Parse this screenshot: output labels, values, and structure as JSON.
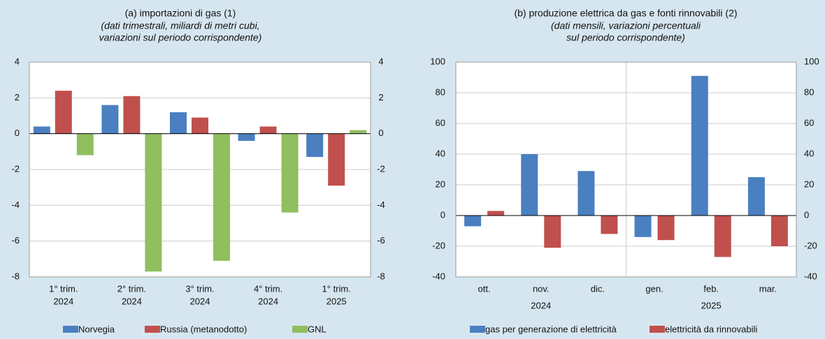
{
  "chart_data": [
    {
      "type": "bar",
      "title": "(a) importazioni di gas (1)",
      "subtitle": [
        "(dati trimestrali, miliardi di metri cubi,",
        "variazioni sul periodo corrispondente)"
      ],
      "categories": [
        [
          "1° trim.",
          "2024"
        ],
        [
          "2° trim.",
          "2024"
        ],
        [
          "3° trim.",
          "2024"
        ],
        [
          "4° trim.",
          "2024"
        ],
        [
          "1° trim.",
          "2025"
        ]
      ],
      "series": [
        {
          "name": "Norvegia",
          "color": "#4a7fc1",
          "values": [
            0.4,
            1.6,
            1.2,
            -0.4,
            -1.3
          ]
        },
        {
          "name": "Russia (metanodotto)",
          "color": "#c0504d",
          "values": [
            2.4,
            2.1,
            0.9,
            0.4,
            -2.9
          ]
        },
        {
          "name": "GNL",
          "color": "#8fbf5f",
          "values": [
            -1.2,
            -7.7,
            -7.1,
            -4.4,
            0.2
          ]
        }
      ],
      "ylim": [
        -8,
        4
      ],
      "yticks": [
        -8,
        -6,
        -4,
        -2,
        0,
        2,
        4
      ],
      "y2lim": [
        -8,
        4
      ],
      "y2ticks": [
        -8,
        -6,
        -4,
        -2,
        0,
        2,
        4
      ],
      "grid": true
    },
    {
      "type": "bar",
      "title": "(b) produzione elettrica da gas e fonti rinnovabili (2)",
      "subtitle": [
        "(dati mensili, variazioni percentuali",
        "sul periodo corrispondente)"
      ],
      "categories": [
        [
          "ott."
        ],
        [
          "nov."
        ],
        [
          "dic."
        ],
        [
          "gen."
        ],
        [
          "feb."
        ],
        [
          "mar."
        ]
      ],
      "group_labels": [
        "2024",
        "2025"
      ],
      "series": [
        {
          "name": "gas per generazione di elettricità",
          "color": "#4a7fc1",
          "values": [
            -7,
            40,
            29,
            -14,
            91,
            25
          ]
        },
        {
          "name": "elettricità da rinnovabili",
          "color": "#c0504d",
          "values": [
            3,
            -21,
            -12,
            -16,
            -27,
            -20
          ]
        }
      ],
      "ylim": [
        -40,
        100
      ],
      "yticks": [
        -40,
        -20,
        0,
        20,
        40,
        60,
        80,
        100
      ],
      "y2lim": [
        -40,
        100
      ],
      "y2ticks": [
        -40,
        -20,
        0,
        20,
        40,
        60,
        80,
        100
      ],
      "grid": true
    }
  ]
}
